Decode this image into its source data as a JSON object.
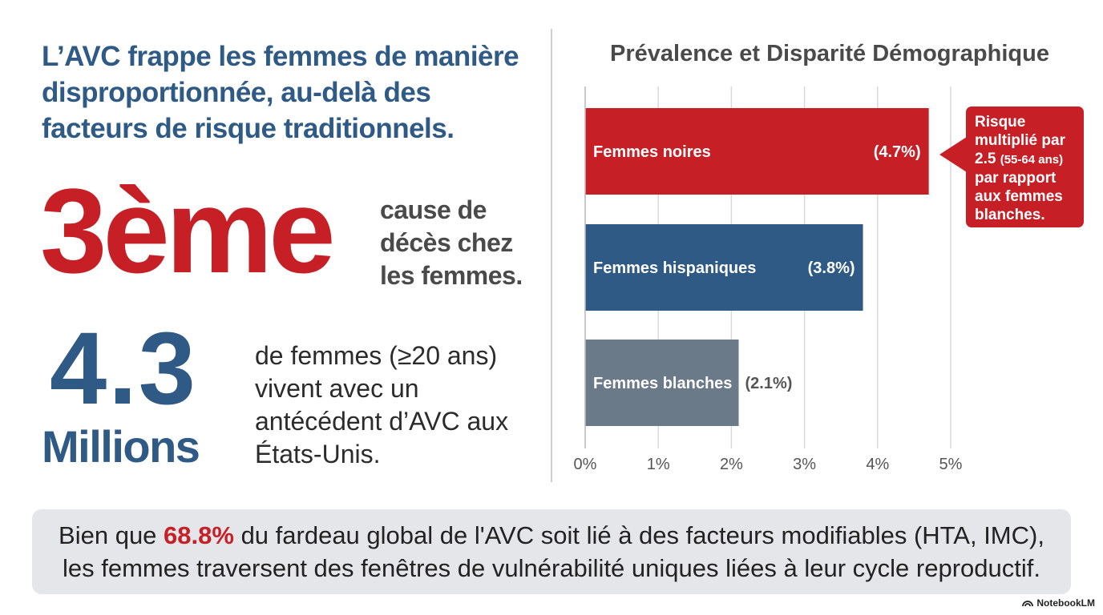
{
  "headline": "L’AVC frappe les femmes de manière disproportionnée, au-delà des facteurs de risque traditionnels.",
  "stat1": {
    "value": "3ème",
    "description": "cause de décès chez les femmes."
  },
  "stat2": {
    "value": "4.3",
    "unit": "Millions",
    "description": "de femmes (≥20 ans) vivent avec un antécédent d’AVC aux États-Unis."
  },
  "chart_title": "Prévalence et Disparité Démographique",
  "chart_data": {
    "type": "bar",
    "orientation": "horizontal",
    "title": "Prévalence et Disparité Démographique",
    "categories": [
      "Femmes noires",
      "Femmes hispaniques",
      "Femmes blanches"
    ],
    "values": [
      4.7,
      3.8,
      2.1
    ],
    "value_labels": [
      "(4.7%)",
      "(3.8%)",
      "(2.1%)"
    ],
    "unit": "%",
    "xlim": [
      0,
      5
    ],
    "x_ticks": [
      "0%",
      "1%",
      "2%",
      "3%",
      "4%",
      "5%"
    ],
    "grid": true,
    "colors": [
      "#c62026",
      "#2e5a85",
      "#6b7a89"
    ]
  },
  "callout": {
    "text_main": "Risque multiplié par 2.5",
    "text_paren": "(55-64 ans)",
    "text_end": "par rapport aux femmes blanches."
  },
  "footer": {
    "prefix": "Bien que ",
    "highlight": "68.8%",
    "rest_line1": " du fardeau global de l'AVC soit lié à des facteurs modifiables (HTA, IMC),",
    "line2": "les femmes traversent des fenêtres de vulnérabilité uniques liées à leur cycle reproductif."
  },
  "brand": "NotebookLM",
  "colors": {
    "red": "#c62026",
    "blue": "#2e5a85",
    "slate": "#6b7a89",
    "footer_bg": "#e4e6ea"
  }
}
